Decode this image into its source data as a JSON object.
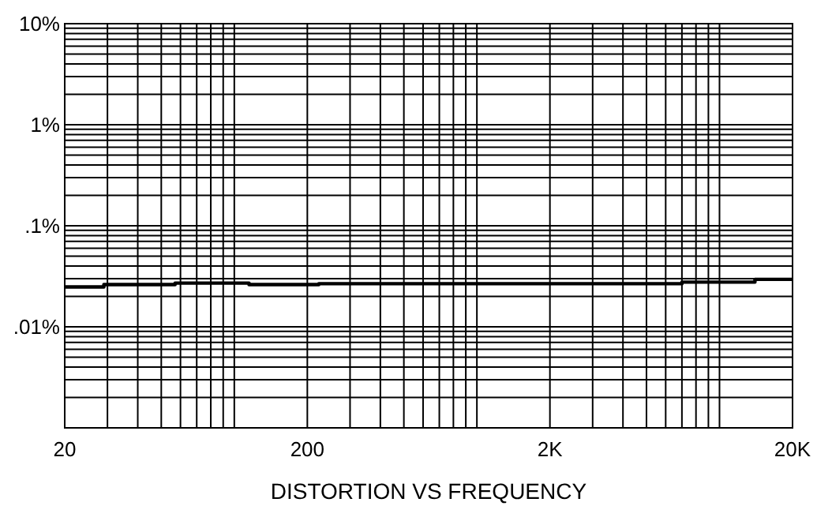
{
  "chart_data": {
    "type": "line",
    "xlabel": "DISTORTION VS FREQUENCY",
    "log": "xy",
    "grid": true,
    "marker": "none",
    "line_style": "solid",
    "xlim": [
      20,
      20000
    ],
    "ylim": [
      0.001,
      10
    ],
    "xticks": [
      20,
      {
        "value": 30,
        "label": null
      },
      {
        "value": 40,
        "label": null
      },
      {
        "value": 50,
        "label": null
      },
      {
        "value": 60,
        "label": null
      },
      {
        "value": 70,
        "label": null
      },
      {
        "value": 80,
        "label": null
      },
      {
        "value": 90,
        "label": null
      },
      {
        "value": 100,
        "label": null
      },
      200,
      {
        "value": 300,
        "label": null
      },
      {
        "value": 400,
        "label": null
      },
      {
        "value": 500,
        "label": null
      },
      {
        "value": 600,
        "label": null
      },
      {
        "value": 700,
        "label": null
      },
      {
        "value": 800,
        "label": null
      },
      {
        "value": 900,
        "label": null
      },
      {
        "value": 1000,
        "label": null
      },
      {
        "value": 2000,
        "label": "2K"
      },
      {
        "value": 3000,
        "label": null
      },
      {
        "value": 4000,
        "label": null
      },
      {
        "value": 5000,
        "label": null
      },
      {
        "value": 6000,
        "label": null
      },
      {
        "value": 7000,
        "label": null
      },
      {
        "value": 8000,
        "label": null
      },
      {
        "value": 9000,
        "label": null
      },
      {
        "value": 10000,
        "label": null
      },
      {
        "value": 20000,
        "label": "20K"
      }
    ],
    "yticks": [
      {
        "value": 0.001,
        "label": null
      },
      {
        "value": 0.002,
        "label": null
      },
      {
        "value": 0.003,
        "label": null
      },
      {
        "value": 0.004,
        "label": null
      },
      {
        "value": 0.005,
        "label": null
      },
      {
        "value": 0.006,
        "label": null
      },
      {
        "value": 0.007,
        "label": null
      },
      {
        "value": 0.008,
        "label": null
      },
      {
        "value": 0.009,
        "label": null
      },
      {
        "value": 0.01,
        "label": ".01%"
      },
      {
        "value": 0.02,
        "label": null
      },
      {
        "value": 0.03,
        "label": null
      },
      {
        "value": 0.04,
        "label": null
      },
      {
        "value": 0.05,
        "label": null
      },
      {
        "value": 0.06,
        "label": null
      },
      {
        "value": 0.07,
        "label": null
      },
      {
        "value": 0.08,
        "label": null
      },
      {
        "value": 0.09,
        "label": null
      },
      {
        "value": 0.1,
        "label": ".1%"
      },
      {
        "value": 0.2,
        "label": null
      },
      {
        "value": 0.3,
        "label": null
      },
      {
        "value": 0.4,
        "label": null
      },
      {
        "value": 0.5,
        "label": null
      },
      {
        "value": 0.6,
        "label": null
      },
      {
        "value": 0.7,
        "label": null
      },
      {
        "value": 0.8,
        "label": null
      },
      {
        "value": 0.9,
        "label": null
      },
      {
        "value": 1,
        "label": "1%"
      },
      {
        "value": 2,
        "label": null
      },
      {
        "value": 3,
        "label": null
      },
      {
        "value": 4,
        "label": null
      },
      {
        "value": 5,
        "label": null
      },
      {
        "value": 6,
        "label": null
      },
      {
        "value": 7,
        "label": null
      },
      {
        "value": 8,
        "label": null
      },
      {
        "value": 9,
        "label": null
      },
      {
        "value": 10,
        "label": "10%"
      }
    ],
    "series": [
      {
        "color": "#000000",
        "x": [
          20,
          29,
          29,
          57,
          57,
          115,
          115,
          223,
          223,
          7000,
          7000,
          14000,
          14000,
          20000
        ],
        "values": [
          0.0248,
          0.0248,
          0.0262,
          0.0262,
          0.0271,
          0.0271,
          0.0262,
          0.0262,
          0.0267,
          0.0267,
          0.0277,
          0.0277,
          0.0295,
          0.0295
        ]
      }
    ]
  }
}
